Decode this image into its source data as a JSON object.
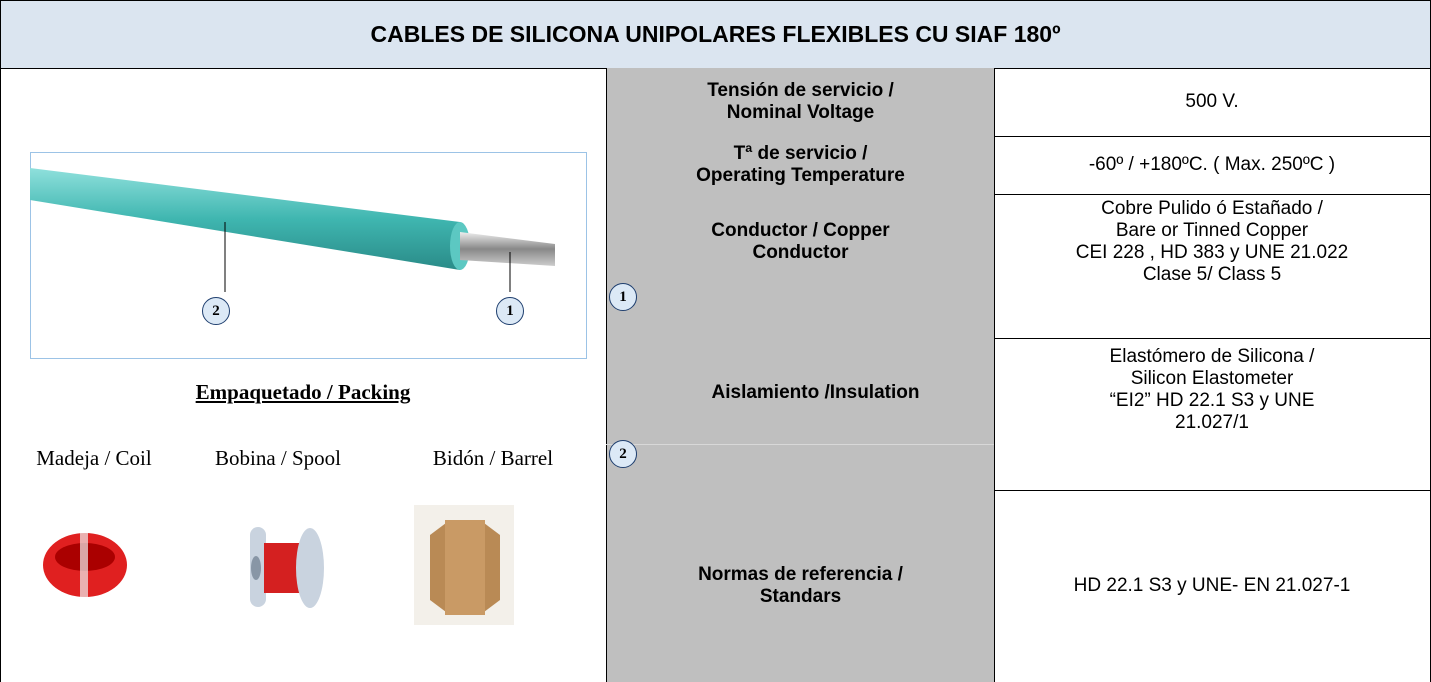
{
  "header": {
    "title": "CABLES DE SILICONA UNIPOLARES FLEXIBLES CU SIAF 180º"
  },
  "cable_image": {
    "callouts": [
      "2",
      "1"
    ]
  },
  "packing": {
    "title": "Empaquetado / Packing",
    "items": [
      "Madeja / Coil",
      "Bobina / Spool",
      "Bidón / Barrel"
    ]
  },
  "table": {
    "rows": [
      {
        "label": [
          "Tensión de servicio /",
          "Nominal Voltage"
        ],
        "value": [
          "500 V."
        ]
      },
      {
        "label": [
          "Tª de servicio /",
          "Operating Temperature"
        ],
        "value": [
          "-60º / +180ºC. ( Max. 250ºC )"
        ]
      },
      {
        "label": [
          "Conductor  / Copper",
          "Conductor"
        ],
        "callout": "1",
        "value": [
          "Cobre Pulido ó Estañado /",
          "Bare or Tinned Copper",
          "CEI 228 , HD 383 y UNE 21.022",
          "Clase 5/ Class 5"
        ]
      },
      {
        "label": [
          "Aislamiento /Insulation"
        ],
        "callout": "2",
        "value": [
          "Elastómero de Silicona /",
          "Silicon Elastometer",
          "“EI2” HD 22.1 S3 y UNE",
          "21.027/1"
        ]
      },
      {
        "label": [
          "Normas de referencia /",
          "Standars"
        ],
        "value": [
          "HD 22.1 S3 y UNE- EN 21.027-1"
        ]
      }
    ]
  }
}
